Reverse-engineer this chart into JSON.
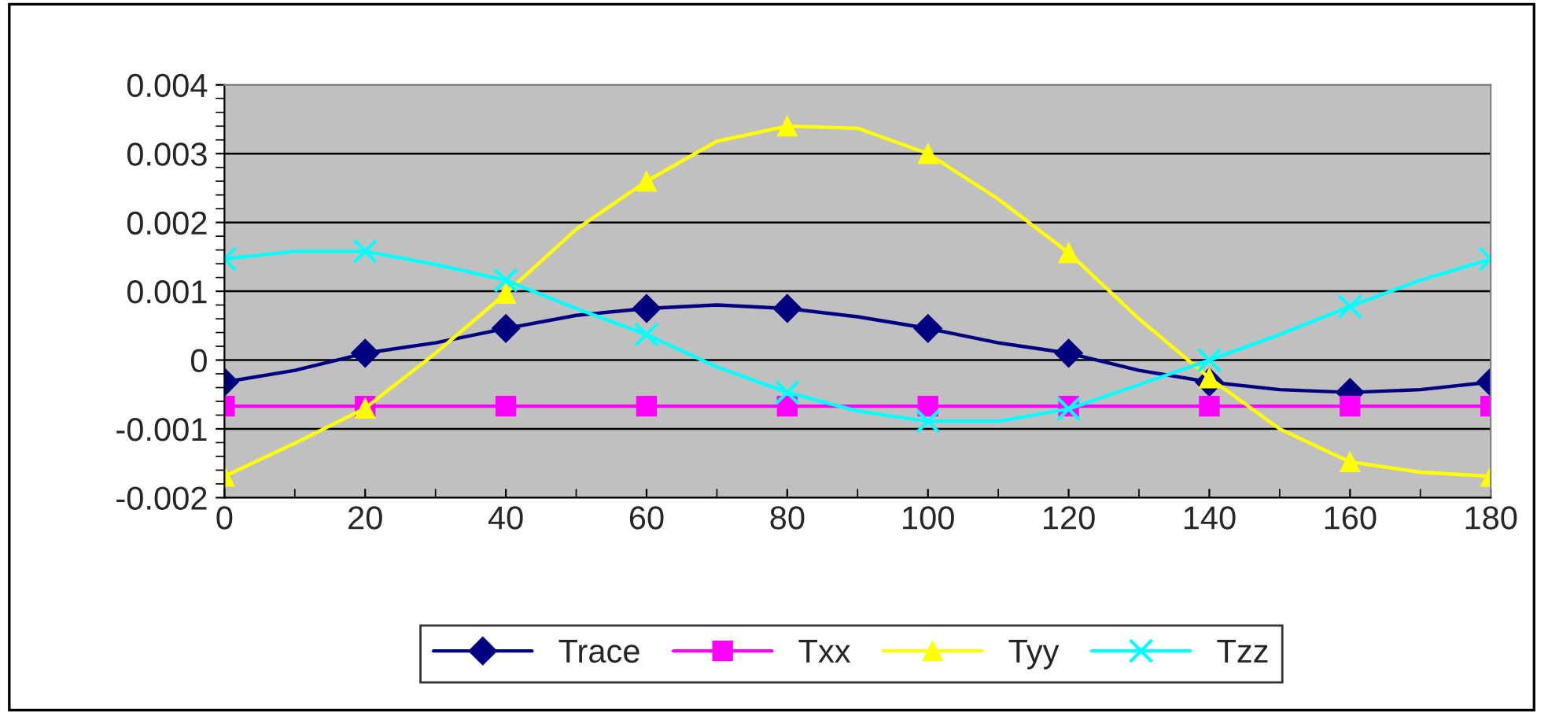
{
  "chart_data": {
    "type": "line",
    "x": [
      0,
      10,
      20,
      30,
      40,
      50,
      60,
      70,
      80,
      90,
      100,
      110,
      120,
      130,
      140,
      150,
      160,
      170,
      180
    ],
    "series": [
      {
        "name": "Trace",
        "color": "#000080",
        "marker": "diamond",
        "values": [
          -0.00032,
          -0.00015,
          0.0001,
          0.00025,
          0.00046,
          0.00065,
          0.00075,
          0.0008,
          0.00075,
          0.00063,
          0.00046,
          0.00025,
          0.0001,
          -0.00015,
          -0.00032,
          -0.00043,
          -0.00047,
          -0.00043,
          -0.00032
        ]
      },
      {
        "name": "Txx",
        "color": "#ff00ff",
        "marker": "square",
        "values": [
          -0.00067,
          -0.00067,
          -0.00067,
          -0.00067,
          -0.00067,
          -0.00067,
          -0.00067,
          -0.00067,
          -0.00067,
          -0.00067,
          -0.00067,
          -0.00067,
          -0.00067,
          -0.00067,
          -0.00067,
          -0.00067,
          -0.00067,
          -0.00067,
          -0.00067
        ]
      },
      {
        "name": "Tyy",
        "color": "#ffff00",
        "marker": "triangle",
        "values": [
          -0.00169,
          -0.00121,
          -0.0007,
          0.0001,
          0.00097,
          0.0019,
          0.0026,
          0.00318,
          0.0034,
          0.00337,
          0.003,
          0.00234,
          0.00156,
          0.0006,
          -0.00026,
          -0.001,
          -0.00148,
          -0.00163,
          -0.00169
        ]
      },
      {
        "name": "Tzz",
        "color": "#00ffff",
        "marker": "cross",
        "values": [
          0.00147,
          0.00158,
          0.00158,
          0.00139,
          0.00116,
          0.00075,
          0.00037,
          -0.0001,
          -0.00047,
          -0.00074,
          -0.00089,
          -0.00089,
          -0.00071,
          -0.00036,
          0,
          0.00037,
          0.00078,
          0.00116,
          0.00147
        ]
      }
    ],
    "xlim": [
      0,
      180
    ],
    "xticks": [
      0,
      20,
      40,
      60,
      80,
      100,
      120,
      140,
      160,
      180
    ],
    "ylim": [
      -0.002,
      0.004
    ],
    "yticks": [
      {
        "value": -0.002,
        "label": "-0.002"
      },
      {
        "value": -0.001,
        "label": "-0.001"
      },
      {
        "value": 0,
        "label": "0"
      },
      {
        "value": 0.001,
        "label": "0.001"
      },
      {
        "value": 0.002,
        "label": "0.002"
      },
      {
        "value": 0.003,
        "label": "0.003"
      },
      {
        "value": 0.004,
        "label": "0.004"
      }
    ],
    "grid": "y",
    "legend": "bottom",
    "line_style": "solid"
  }
}
